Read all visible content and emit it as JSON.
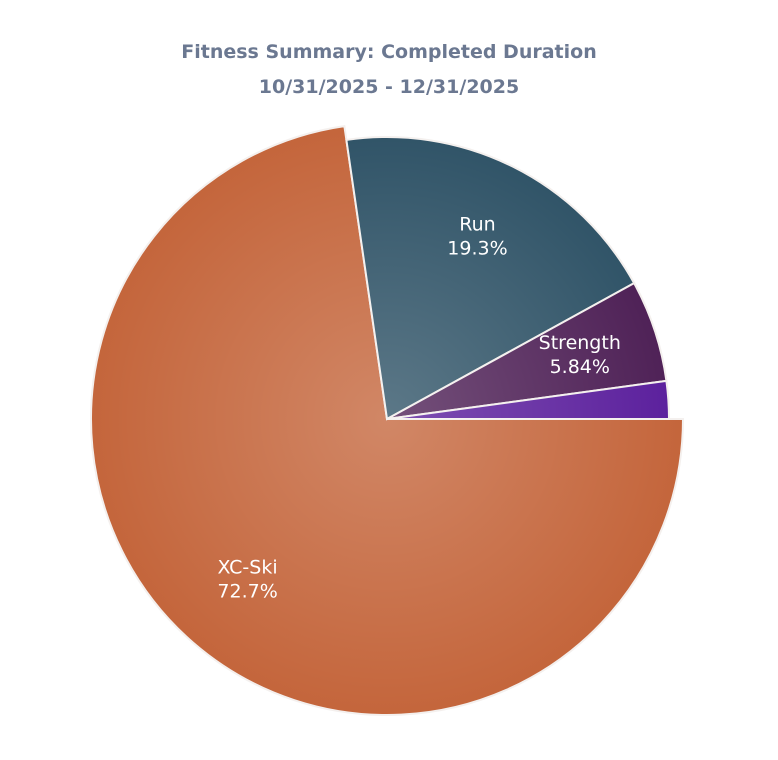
{
  "chart_data": {
    "type": "pie",
    "title": "Fitness Summary: Completed Duration",
    "subtitle": "10/31/2025 - 12/31/2025",
    "categories": [
      "XC-Ski",
      "Run",
      "Strength",
      null
    ],
    "values": [
      72.7,
      19.3,
      5.84,
      2.16
    ],
    "value_labels": [
      "72.7%",
      "19.3%",
      "5.84%",
      null
    ],
    "colors": [
      "#c4653b",
      "#2e5266",
      "#4d1f55",
      "#5a1e9c"
    ]
  }
}
